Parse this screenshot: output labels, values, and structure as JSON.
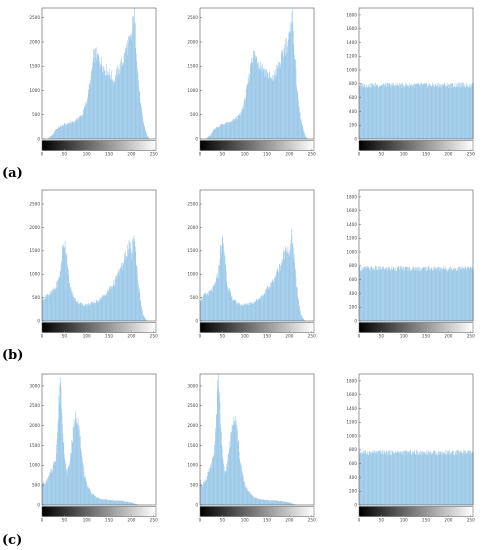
{
  "figure": {
    "row_labels": [
      "(a)",
      "(b)",
      "(c)"
    ]
  },
  "style": {
    "bar_color": "#9ecae9",
    "axis_color": "#555555",
    "colorbar": "grayscale black-to-white"
  },
  "chart_data": [
    {
      "type": "area",
      "panel": "a-original",
      "x_ticks": [
        0,
        50,
        100,
        150,
        200,
        250
      ],
      "xlim": [
        0,
        255
      ],
      "ylim": [
        0,
        2700
      ],
      "y_ticks": [
        0,
        500,
        1000,
        1500,
        2000,
        2500
      ],
      "x": [
        0,
        12,
        25,
        30,
        50,
        70,
        90,
        100,
        110,
        115,
        120,
        130,
        140,
        150,
        160,
        170,
        180,
        190,
        200,
        205,
        210,
        215,
        220,
        225,
        230,
        235,
        240,
        255
      ],
      "y": [
        0,
        0,
        100,
        200,
        300,
        350,
        500,
        800,
        1300,
        1700,
        1750,
        1600,
        1450,
        1350,
        1200,
        1400,
        1600,
        1900,
        2100,
        2650,
        1900,
        1200,
        700,
        400,
        200,
        60,
        0,
        0
      ]
    },
    {
      "type": "area",
      "panel": "a-enhanced",
      "x_ticks": [
        0,
        50,
        100,
        150,
        200,
        250
      ],
      "xlim": [
        0,
        255
      ],
      "ylim": [
        0,
        2700
      ],
      "y_ticks": [
        0,
        500,
        1000,
        1500,
        2000,
        2500
      ],
      "x": [
        0,
        12,
        25,
        30,
        50,
        70,
        90,
        100,
        110,
        115,
        120,
        130,
        140,
        150,
        160,
        170,
        180,
        190,
        200,
        205,
        210,
        215,
        220,
        225,
        230,
        235,
        240,
        255
      ],
      "y": [
        0,
        0,
        100,
        200,
        300,
        350,
        500,
        800,
        1300,
        1700,
        1750,
        1600,
        1450,
        1350,
        1200,
        1400,
        1600,
        1900,
        2100,
        2650,
        1900,
        1200,
        700,
        400,
        200,
        60,
        0,
        0
      ]
    },
    {
      "type": "area",
      "panel": "a-equalized",
      "x_ticks": [
        0,
        50,
        100,
        150,
        200,
        250
      ],
      "xlim": [
        0,
        255
      ],
      "ylim": [
        0,
        1900
      ],
      "y_ticks": [
        0,
        200,
        400,
        600,
        800,
        1000,
        1200,
        1400,
        1600,
        1800
      ],
      "x": [
        0,
        255
      ],
      "y": [
        780,
        780
      ]
    },
    {
      "type": "area",
      "panel": "b-original",
      "x_ticks": [
        0,
        50,
        100,
        150,
        200,
        250
      ],
      "xlim": [
        0,
        255
      ],
      "ylim": [
        0,
        2800
      ],
      "y_ticks": [
        0,
        500,
        1000,
        1500,
        2000,
        2500
      ],
      "x": [
        0,
        10,
        20,
        30,
        40,
        45,
        50,
        55,
        60,
        70,
        80,
        90,
        100,
        120,
        140,
        160,
        170,
        180,
        190,
        195,
        200,
        205,
        210,
        215,
        220,
        225,
        230,
        235,
        255
      ],
      "y": [
        450,
        550,
        600,
        700,
        1000,
        1500,
        1700,
        1400,
        800,
        500,
        400,
        350,
        350,
        400,
        550,
        800,
        1000,
        1200,
        1500,
        1600,
        1400,
        1900,
        1300,
        800,
        400,
        150,
        50,
        0,
        0
      ]
    },
    {
      "type": "area",
      "panel": "b-enhanced",
      "x_ticks": [
        0,
        50,
        100,
        150,
        200,
        250
      ],
      "xlim": [
        0,
        255
      ],
      "ylim": [
        0,
        2800
      ],
      "y_ticks": [
        0,
        500,
        1000,
        1500,
        2000,
        2500
      ],
      "x": [
        0,
        10,
        20,
        30,
        40,
        45,
        50,
        55,
        60,
        70,
        80,
        90,
        100,
        120,
        140,
        160,
        170,
        180,
        190,
        195,
        200,
        205,
        210,
        215,
        220,
        225,
        230,
        235,
        255
      ],
      "y": [
        450,
        550,
        600,
        700,
        1000,
        1500,
        1700,
        1400,
        800,
        500,
        400,
        350,
        350,
        400,
        550,
        800,
        1000,
        1200,
        1500,
        1600,
        1400,
        1900,
        1300,
        800,
        400,
        150,
        50,
        0,
        0
      ]
    },
    {
      "type": "area",
      "panel": "b-equalized",
      "x_ticks": [
        0,
        50,
        100,
        150,
        200,
        250
      ],
      "xlim": [
        0,
        255
      ],
      "ylim": [
        0,
        1900
      ],
      "y_ticks": [
        0,
        200,
        400,
        600,
        800,
        1000,
        1200,
        1400,
        1600,
        1800
      ],
      "x": [
        0,
        255
      ],
      "y": [
        760,
        760
      ]
    },
    {
      "type": "area",
      "panel": "c-original",
      "x_ticks": [
        0,
        50,
        100,
        150,
        200,
        250
      ],
      "xlim": [
        0,
        255
      ],
      "ylim": [
        0,
        3300
      ],
      "y_ticks": [
        0,
        500,
        1000,
        1500,
        2000,
        2500,
        3000
      ],
      "x": [
        0,
        5,
        15,
        25,
        30,
        35,
        40,
        45,
        50,
        55,
        60,
        65,
        70,
        75,
        80,
        85,
        90,
        100,
        110,
        120,
        130,
        150,
        180,
        200,
        210,
        220,
        225,
        255
      ],
      "y": [
        600,
        500,
        700,
        1000,
        1200,
        2000,
        3300,
        2200,
        1100,
        800,
        1000,
        1400,
        1900,
        2300,
        2200,
        1600,
        1000,
        500,
        300,
        200,
        150,
        120,
        100,
        60,
        20,
        0,
        0,
        0
      ]
    },
    {
      "type": "area",
      "panel": "c-enhanced",
      "x_ticks": [
        0,
        50,
        100,
        150,
        200,
        250
      ],
      "xlim": [
        0,
        255
      ],
      "ylim": [
        0,
        3300
      ],
      "y_ticks": [
        0,
        500,
        1000,
        1500,
        2000,
        2500,
        3000
      ],
      "x": [
        0,
        5,
        15,
        25,
        30,
        35,
        40,
        45,
        50,
        55,
        60,
        65,
        70,
        75,
        80,
        85,
        90,
        100,
        110,
        120,
        130,
        150,
        180,
        200,
        210,
        220,
        225,
        255
      ],
      "y": [
        600,
        500,
        700,
        1000,
        1200,
        2000,
        3300,
        2200,
        1100,
        800,
        1000,
        1400,
        1900,
        2300,
        2200,
        1600,
        1000,
        500,
        300,
        200,
        150,
        120,
        100,
        60,
        20,
        0,
        0,
        0
      ]
    },
    {
      "type": "area",
      "panel": "c-equalized",
      "x_ticks": [
        0,
        50,
        100,
        150,
        200,
        250
      ],
      "xlim": [
        0,
        255
      ],
      "ylim": [
        0,
        1900
      ],
      "y_ticks": [
        0,
        200,
        400,
        600,
        800,
        1000,
        1200,
        1400,
        1600,
        1800
      ],
      "x": [
        0,
        255
      ],
      "y": [
        760,
        760
      ]
    }
  ]
}
